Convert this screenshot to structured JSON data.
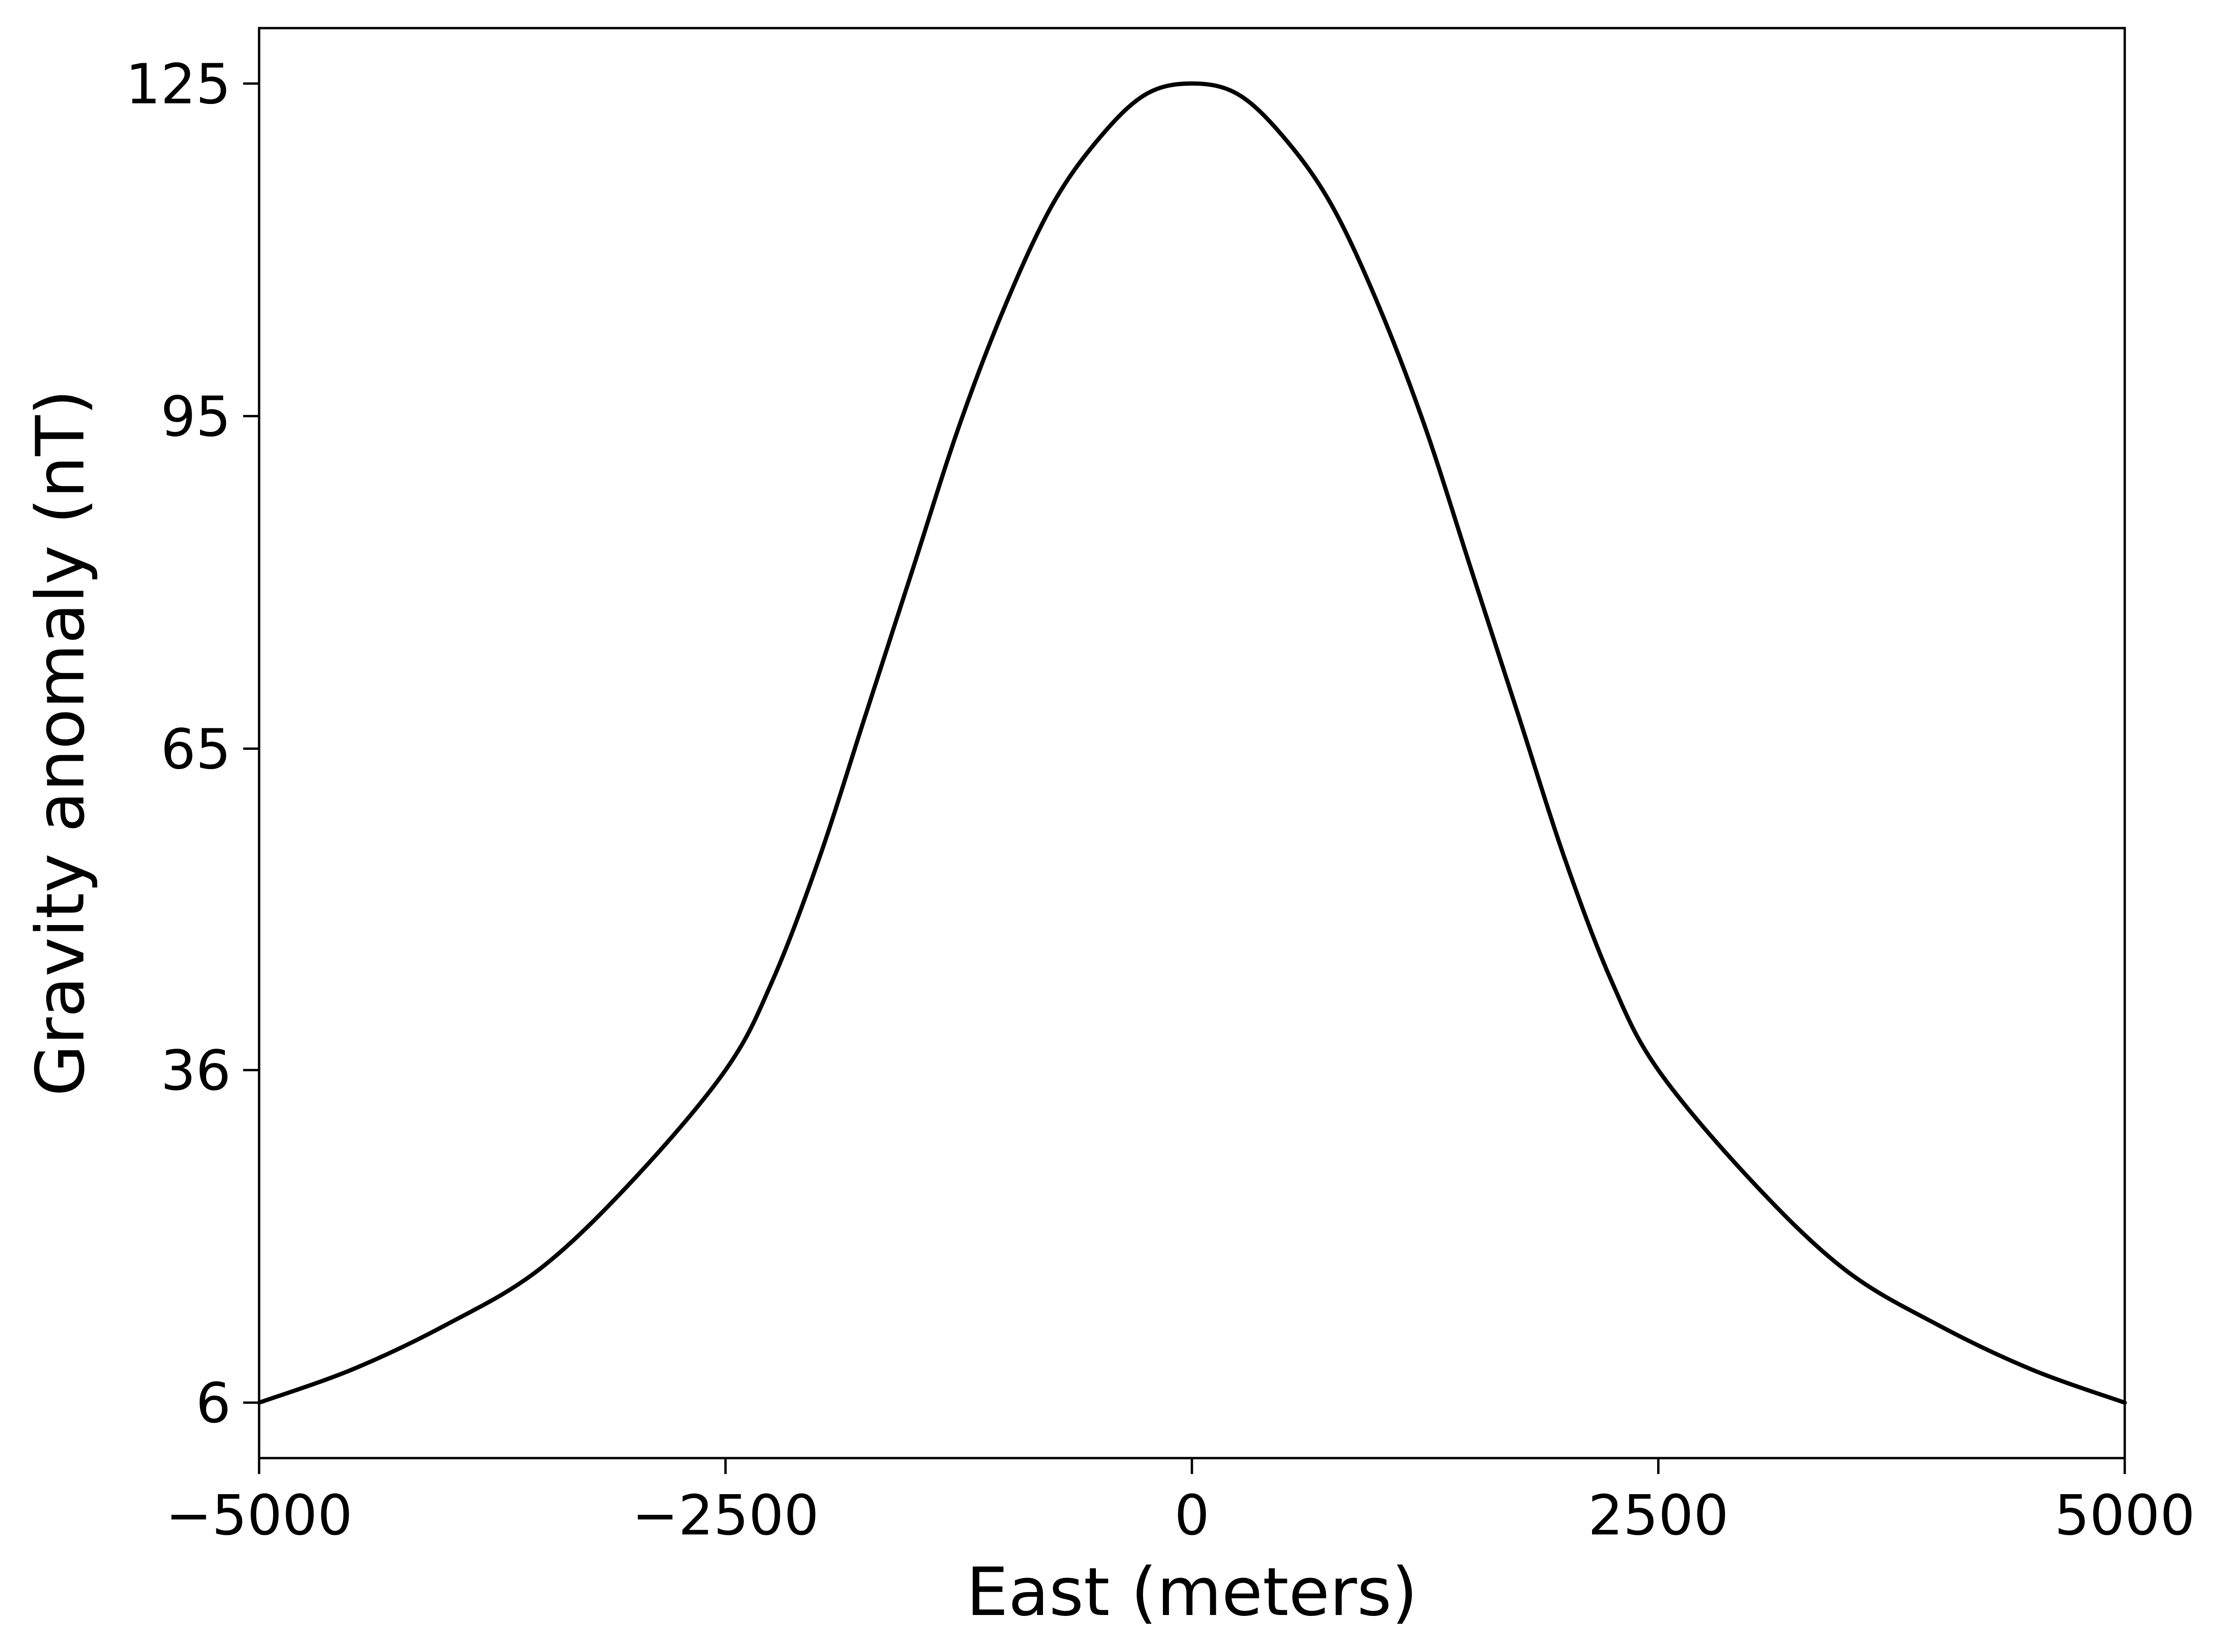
{
  "chart_data": {
    "type": "line",
    "title": "",
    "xlabel": "East (meters)",
    "ylabel": "Gravity anomaly (nT)",
    "xlim": [
      -5000,
      5000
    ],
    "ylim": [
      1,
      130
    ],
    "x_ticks": [
      -5000,
      -2500,
      0,
      2500,
      5000
    ],
    "x_tick_labels": [
      "−5000",
      "−2500",
      "0",
      "2500",
      "5000"
    ],
    "y_ticks": [
      6,
      36,
      65,
      95,
      125
    ],
    "y_tick_labels": [
      "6",
      "36",
      "65",
      "95",
      "125"
    ],
    "grid": false,
    "legend": "none",
    "line_color": "#000000",
    "series": [
      {
        "x": [
          -5000,
          -4500,
          -4000,
          -3500,
          -3000,
          -2500,
          -2250,
          -2000,
          -1750,
          -1500,
          -1250,
          -1000,
          -750,
          -500,
          -250,
          0,
          250,
          500,
          750,
          1000,
          1250,
          1500,
          1750,
          2000,
          2250,
          2500,
          3000,
          3500,
          4000,
          4500,
          5000
        ],
        "values": [
          6,
          9,
          13,
          18,
          26,
          36,
          44,
          55,
          68,
          81,
          94,
          105,
          114,
          120,
          124,
          125,
          124,
          120,
          114,
          105,
          94,
          81,
          68,
          55,
          44,
          36,
          26,
          18,
          13,
          9,
          6
        ]
      }
    ]
  }
}
